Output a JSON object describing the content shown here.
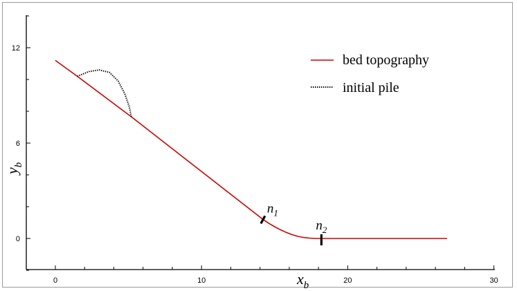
{
  "chart_data": {
    "type": "line",
    "title": "",
    "xlabel": "x",
    "xlabel_sub": "b",
    "ylabel": "y",
    "ylabel_sub": "b",
    "xlim": [
      -2,
      30
    ],
    "ylim": [
      -2,
      14
    ],
    "x_ticks": [
      0,
      10,
      20,
      30
    ],
    "y_ticks": [
      0,
      6,
      12
    ],
    "grid": false,
    "legend_position": "top-right",
    "series": [
      {
        "name": "bed topography",
        "color": "#cc0000",
        "style": "solid",
        "x": [
          0,
          1.5,
          5.2,
          14.2,
          14.6,
          15.0,
          15.4,
          15.8,
          16.2,
          16.6,
          17.0,
          17.4,
          17.8,
          18.2,
          26.8
        ],
        "y": [
          11.2,
          10.2,
          7.65,
          1.2,
          0.95,
          0.74,
          0.55,
          0.38,
          0.24,
          0.13,
          0.06,
          0.02,
          0.0,
          0.0,
          0.0
        ]
      },
      {
        "name": "initial pile",
        "color": "#000000",
        "style": "dotted",
        "x": [
          1.5,
          2.3,
          3.0,
          3.7,
          4.3,
          4.75,
          5.05,
          5.2
        ],
        "y": [
          10.2,
          10.5,
          10.6,
          10.45,
          9.9,
          9.1,
          8.3,
          7.65
        ]
      }
    ],
    "annotations": [
      {
        "label": "n",
        "sub": "1",
        "x": 14.2,
        "y": 1.2
      },
      {
        "label": "n",
        "sub": "2",
        "x": 18.2,
        "y": 0.0
      }
    ]
  }
}
